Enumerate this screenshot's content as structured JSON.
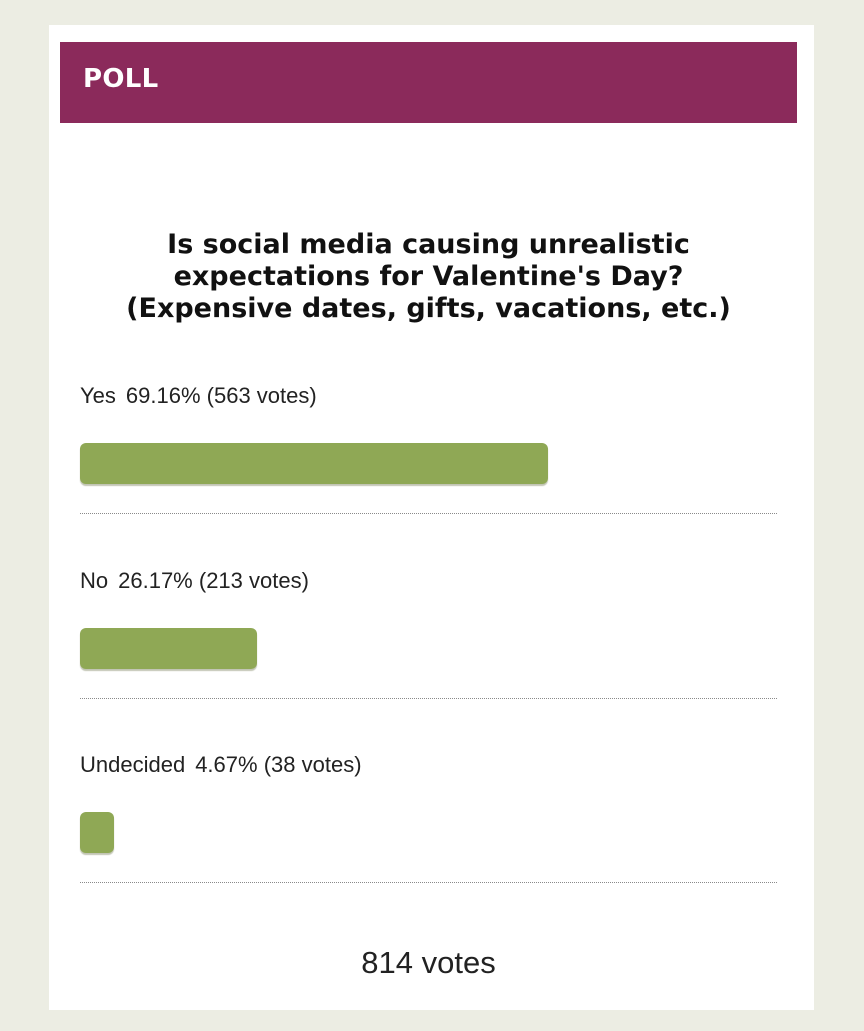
{
  "poll": {
    "header_title": "POLL",
    "question_line1": "Is social media causing unrealistic",
    "question_line2": "expectations for Valentine's Day?",
    "question_line3": "(Expensive dates, gifts, vacations, etc.)",
    "accent_color": "#8b2a5b",
    "bar_color": "#8fa855",
    "options": [
      {
        "label": "Yes",
        "percent": "69.16%",
        "votes": "(563 votes)",
        "fraction": 0.6916
      },
      {
        "label": "No",
        "percent": "26.17%",
        "votes": "(213 votes)",
        "fraction": 0.2617
      },
      {
        "label": "Undecided",
        "percent": "4.67%",
        "votes": "(38 votes)",
        "fraction": 0.0467
      }
    ],
    "total_votes": "814 votes"
  }
}
